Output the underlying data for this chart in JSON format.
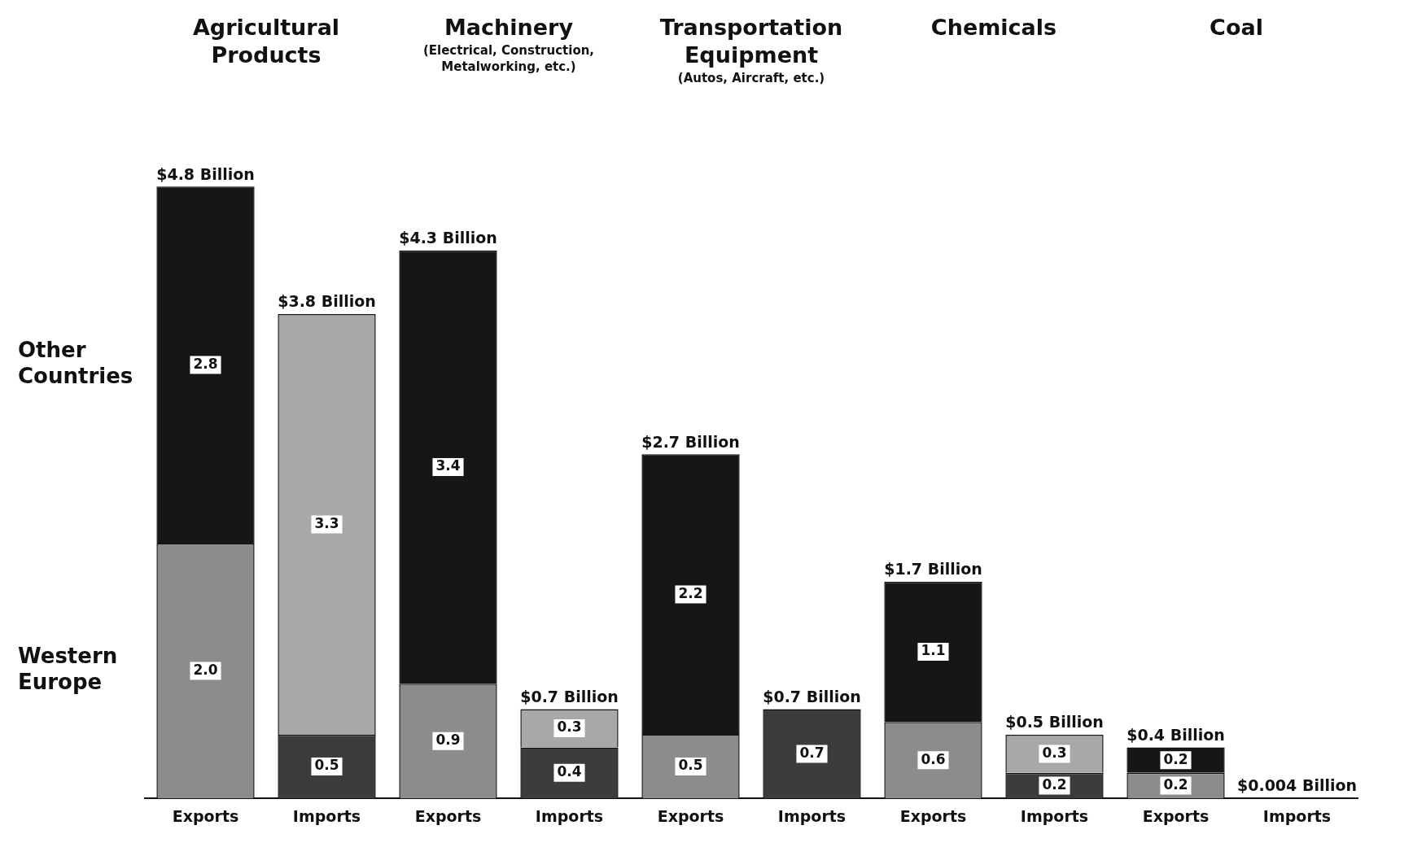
{
  "chart_data": {
    "type": "bar",
    "stacked": true,
    "grid": false,
    "categories": [
      "Exports",
      "Imports",
      "Exports",
      "Imports",
      "Exports",
      "Imports",
      "Exports",
      "Imports",
      "Exports",
      "Imports"
    ],
    "series": [
      {
        "name": "Western Europe",
        "colors": [
          "#8c8c8c",
          "#3c3c3c",
          "#8c8c8c",
          "#3c3c3c",
          "#8c8c8c",
          "#3c3c3c",
          "#8c8c8c",
          "#3c3c3c",
          "#8c8c8c",
          "#3c3c3c"
        ],
        "values": [
          2.0,
          0.5,
          0.9,
          0.4,
          0.5,
          0.7,
          0.6,
          0.2,
          0.2,
          0.004
        ],
        "value_labels": [
          "2.0",
          "0.5",
          "0.9",
          "0.4",
          "0.5",
          "0.7",
          "0.6",
          "0.2",
          "0.2",
          null
        ]
      },
      {
        "name": "Other Countries",
        "colors": [
          "#161616",
          "#a8a8a8",
          "#161616",
          "#a8a8a8",
          "#161616",
          "#a8a8a8",
          "#161616",
          "#a8a8a8",
          "#161616",
          "#a8a8a8"
        ],
        "values": [
          2.8,
          3.3,
          3.4,
          0.3,
          2.2,
          null,
          1.1,
          0.3,
          0.2,
          null
        ],
        "value_labels": [
          "2.8",
          "3.3",
          "3.4",
          "0.3",
          "2.2",
          null,
          "1.1",
          "0.3",
          "0.2",
          null
        ]
      }
    ],
    "totals": [
      "$4.8 Billion",
      "$3.8 Billion",
      "$4.3 Billion",
      "$0.7 Billion",
      "$2.7 Billion",
      "$0.7 Billion",
      "$1.7 Billion",
      "$0.5 Billion",
      "$0.4 Billion",
      "$0.004 Billion"
    ],
    "annotations": [
      "Agricultural Products",
      "Machinery\n(Electrical, Construction, Metalworking, etc.)",
      "Transportation Equipment\n(Autos, Aircraft, etc.)",
      "Chemicals",
      "Coal"
    ]
  }
}
